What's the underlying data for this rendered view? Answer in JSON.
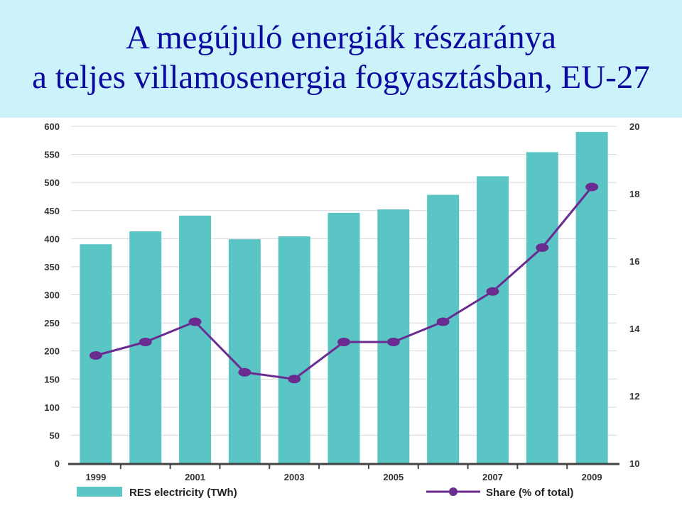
{
  "title": {
    "line1": "A megújuló energiák részaránya",
    "line2": "a teljes villamosenergia fogyasztásban, EU-27"
  },
  "colors": {
    "bar": "#5bc5c5",
    "line": "#6a2c91",
    "grid": "#d8d8d8",
    "title": "#0a0aa0",
    "title_band": "#ccf2fa"
  },
  "chart_data": {
    "type": "bar",
    "categories": [
      "1999",
      "2000",
      "2001",
      "2002",
      "2003",
      "2004",
      "2005",
      "2006",
      "2007",
      "2008",
      "2009"
    ],
    "x_tick_labels": [
      "1999",
      "",
      "2001",
      "",
      "2003",
      "",
      "2005",
      "",
      "2007",
      "",
      "2009"
    ],
    "series": [
      {
        "name": "RES electricity (TWh)",
        "type": "bar",
        "axis": "left",
        "values": [
          390,
          413,
          441,
          399,
          404,
          446,
          452,
          478,
          511,
          554,
          590
        ]
      },
      {
        "name": "Share (% of total)",
        "type": "line",
        "axis": "right",
        "values": [
          13.2,
          13.6,
          14.2,
          12.7,
          12.5,
          13.6,
          13.6,
          14.2,
          15.1,
          16.4,
          18.2
        ]
      }
    ],
    "ylim_left": [
      0,
      600
    ],
    "yticks_left": [
      0,
      50,
      100,
      150,
      200,
      250,
      300,
      350,
      400,
      450,
      500,
      550,
      600
    ],
    "ylim_right": [
      10,
      20
    ],
    "yticks_right": [
      10,
      12,
      14,
      16,
      18,
      20
    ],
    "grid": true,
    "legend_position": "bottom"
  }
}
